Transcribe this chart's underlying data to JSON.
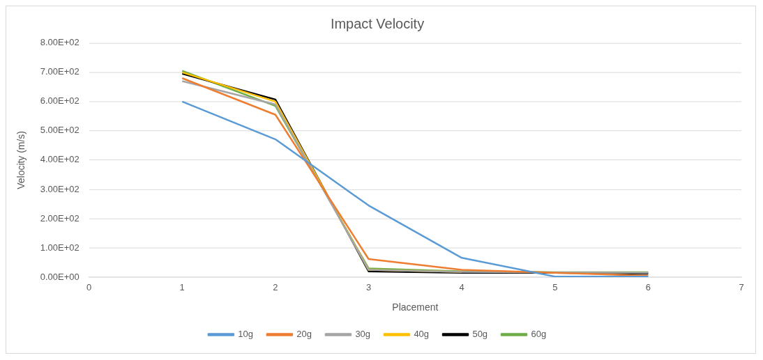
{
  "chart_data": {
    "type": "line",
    "title": "Impact Velocity",
    "xlabel": "Placement",
    "ylabel": "Velocity (m/s)",
    "x": [
      1,
      2,
      3,
      4,
      5,
      6
    ],
    "series": [
      {
        "name": "10g",
        "color": "#5b9bd5",
        "values": [
          600,
          471,
          245,
          66,
          2,
          2
        ]
      },
      {
        "name": "20g",
        "color": "#ed7d31",
        "values": [
          680,
          555,
          62,
          25,
          15,
          5
        ]
      },
      {
        "name": "30g",
        "color": "#a5a5a5",
        "values": [
          670,
          590,
          25,
          18,
          16,
          15
        ]
      },
      {
        "name": "40g",
        "color": "#ffc000",
        "values": [
          700,
          600,
          25,
          18,
          null,
          null
        ]
      },
      {
        "name": "50g",
        "color": "#000000",
        "values": [
          695,
          607,
          20,
          15,
          15,
          12
        ]
      },
      {
        "name": "60g",
        "color": "#70ad47",
        "values": [
          705,
          585,
          30,
          20,
          17,
          17
        ]
      }
    ],
    "xlim": [
      0,
      7
    ],
    "xticks": [
      0,
      1,
      2,
      3,
      4,
      5,
      6,
      7
    ],
    "ylim": [
      0,
      800
    ],
    "yticks": [
      {
        "value": 0,
        "label": "0.00E+00"
      },
      {
        "value": 100,
        "label": "1.00E+02"
      },
      {
        "value": 200,
        "label": "2.00E+02"
      },
      {
        "value": 300,
        "label": "3.00E+02"
      },
      {
        "value": 400,
        "label": "4.00E+02"
      },
      {
        "value": 500,
        "label": "5.00E+02"
      },
      {
        "value": 600,
        "label": "6.00E+02"
      },
      {
        "value": 700,
        "label": "7.00E+02"
      },
      {
        "value": 800,
        "label": "8.00E+02"
      }
    ],
    "grid": "y",
    "legend": "bottom",
    "marker": "none"
  }
}
